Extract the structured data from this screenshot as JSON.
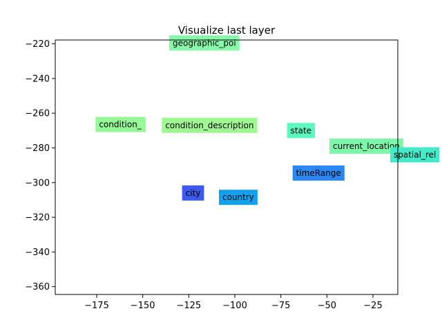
{
  "chart_data": {
    "type": "scatter",
    "title": "Visualize last layer",
    "xlabel": "",
    "ylabel": "",
    "xlim": [
      -197.5,
      -11.5
    ],
    "ylim": [
      -364.5,
      -217.8
    ],
    "grid": false,
    "x_ticks": [
      -175,
      -150,
      -125,
      -100,
      -75,
      -50,
      -25
    ],
    "x_tick_labels": [
      "−175",
      "−150",
      "−125",
      "−100",
      "−75",
      "−50",
      "−25"
    ],
    "y_ticks": [
      -220,
      -240,
      -260,
      -280,
      -300,
      -320,
      -340,
      -360
    ],
    "y_tick_labels": [
      "−220",
      "−240",
      "−260",
      "−280",
      "−300",
      "−320",
      "−340",
      "−360"
    ],
    "points": [
      {
        "label": "geographic_poi",
        "x": -136,
        "y": -219.5,
        "color": "#88f8aa"
      },
      {
        "label": "condition_",
        "x": -176,
        "y": -266.5,
        "color": "#96f897"
      },
      {
        "label": "condition_description",
        "x": -140,
        "y": -267,
        "color": "#9ff892"
      },
      {
        "label": "state",
        "x": -72,
        "y": -270,
        "color": "#5cf8c0"
      },
      {
        "label": "current_location",
        "x": -49,
        "y": -279,
        "color": "#7cf8a8"
      },
      {
        "label": "spatial_rel",
        "x": -16,
        "y": -284,
        "color": "#45eacb"
      },
      {
        "label": "timeRange",
        "x": -69,
        "y": -294.5,
        "color": "#2b87f2"
      },
      {
        "label": "city",
        "x": -129,
        "y": -306,
        "color": "#3c59f0"
      },
      {
        "label": "country",
        "x": -109,
        "y": -308.5,
        "color": "#14a1ec"
      }
    ]
  }
}
